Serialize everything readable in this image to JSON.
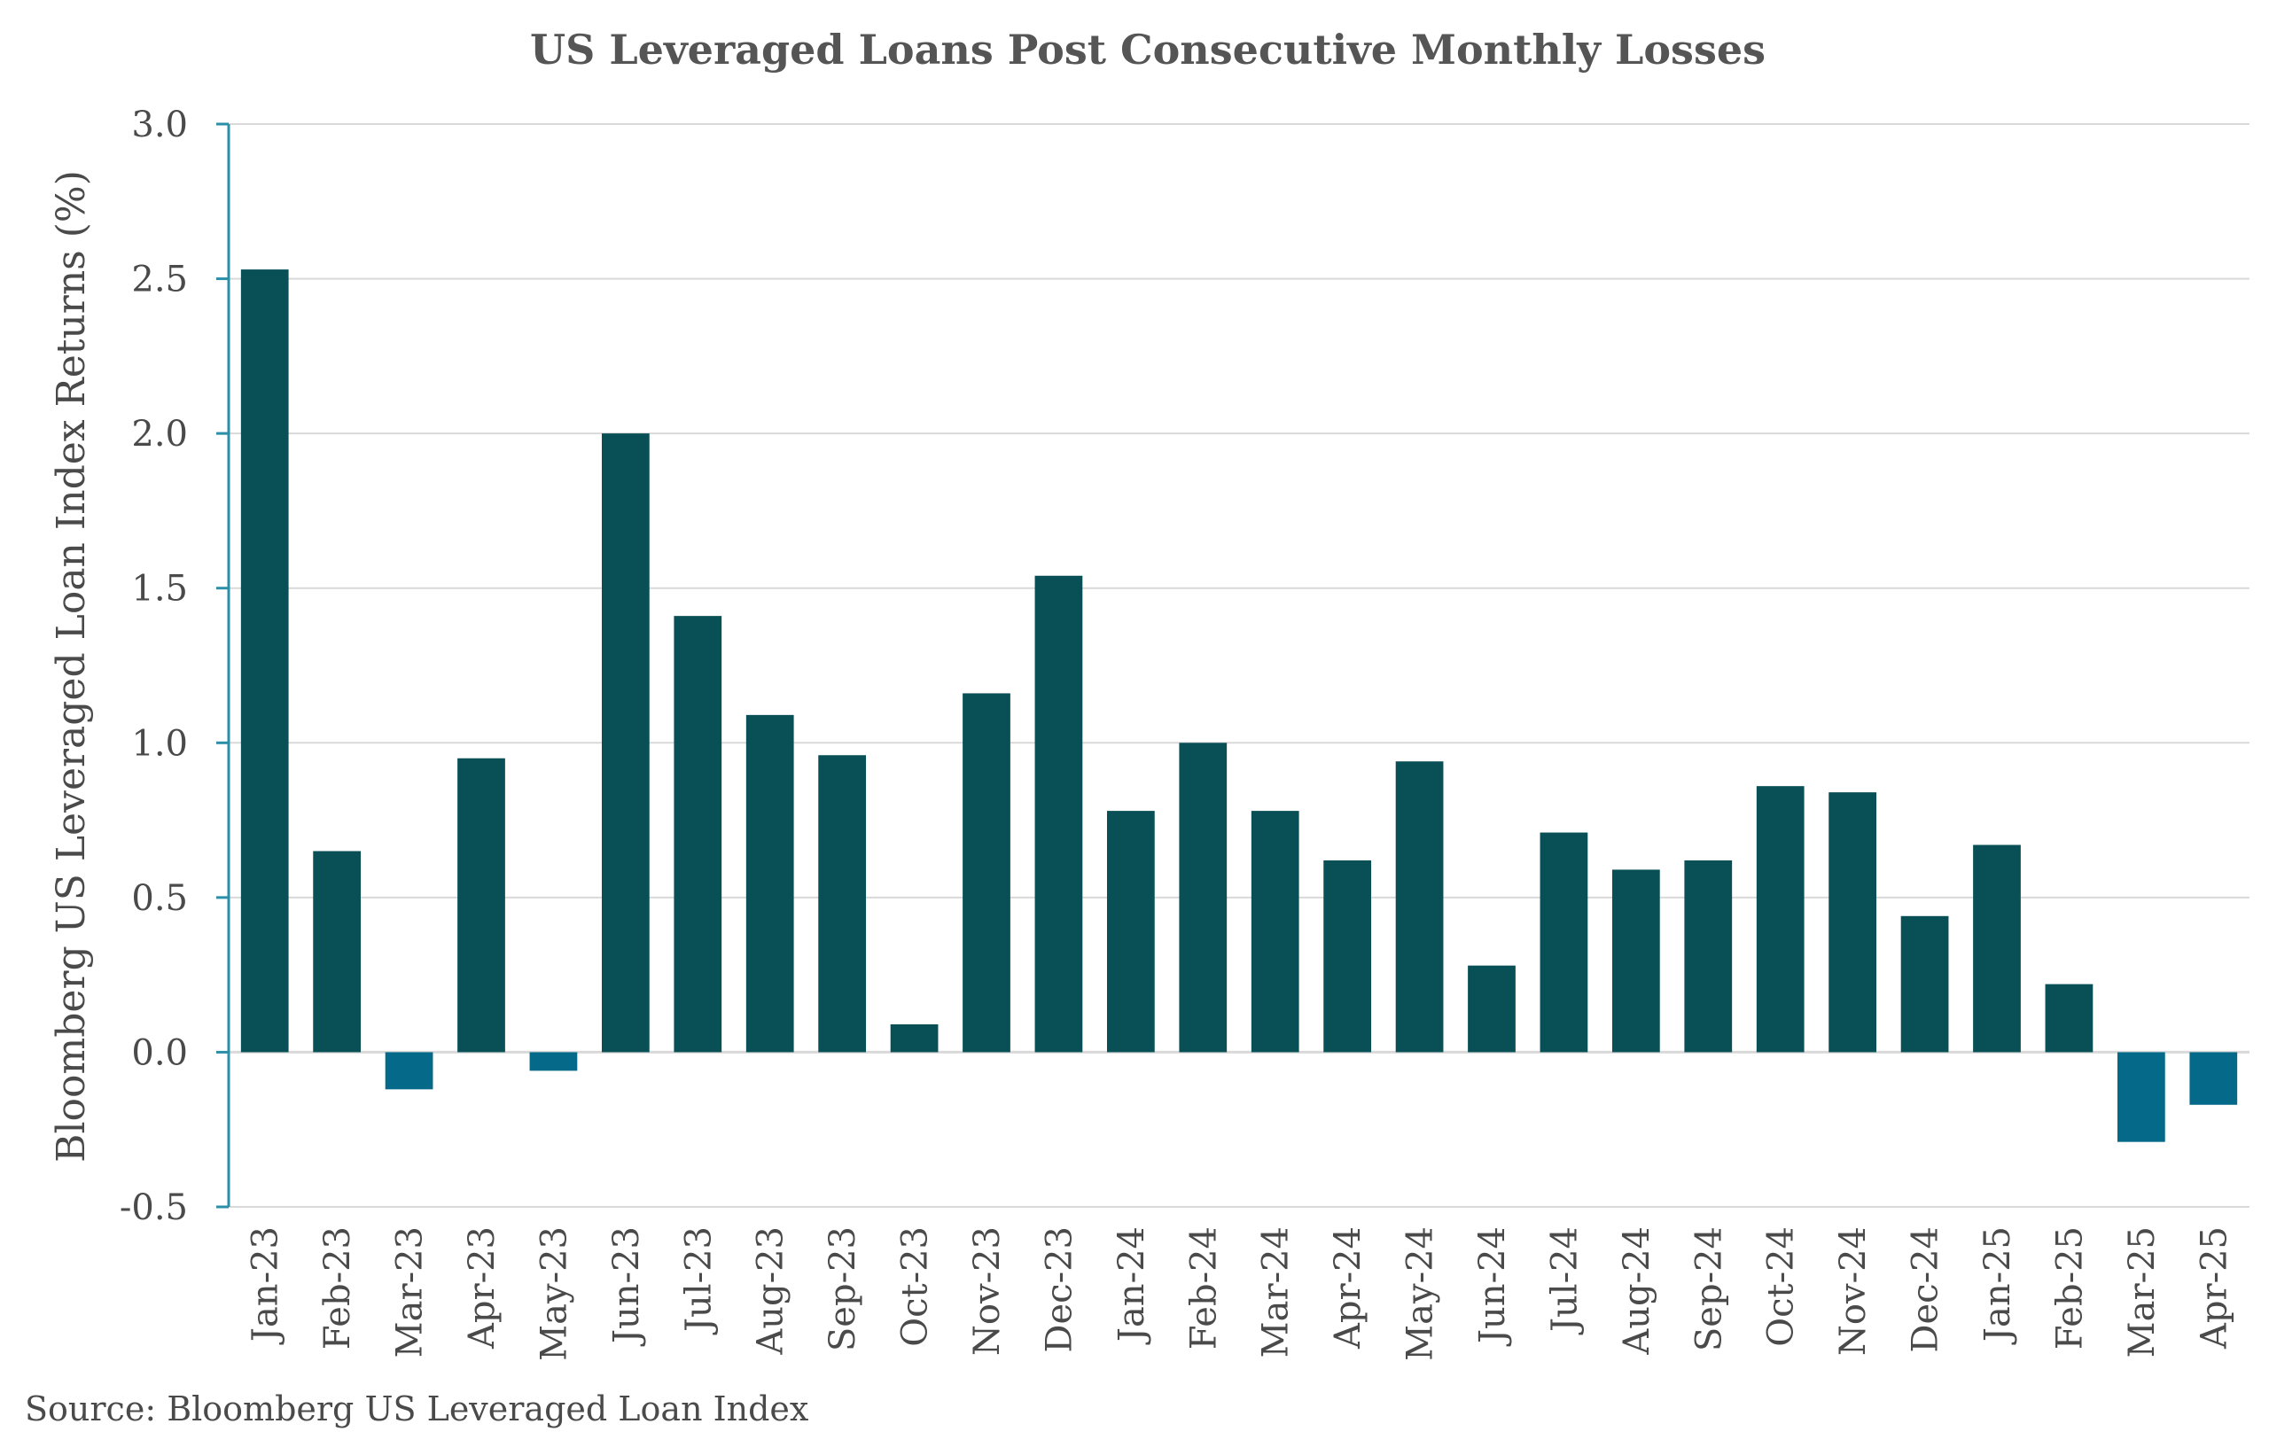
{
  "chart_data": {
    "type": "bar",
    "title": "US Leveraged Loans Post Consecutive Monthly Losses",
    "xlabel": "",
    "ylabel": "Bloomberg US Leveraged Loan Index Returns (%)",
    "ylim": [
      -0.5,
      3.0
    ],
    "yticks": [
      "-0.5",
      "0.0",
      "0.5",
      "1.0",
      "1.5",
      "2.0",
      "2.5",
      "3.0"
    ],
    "grid": true,
    "categories": [
      "Jan-23",
      "Feb-23",
      "Mar-23",
      "Apr-23",
      "May-23",
      "Jun-23",
      "Jul-23",
      "Aug-23",
      "Sep-23",
      "Oct-23",
      "Nov-23",
      "Dec-23",
      "Jan-24",
      "Feb-24",
      "Mar-24",
      "Apr-24",
      "May-24",
      "Jun-24",
      "Jul-24",
      "Aug-24",
      "Sep-24",
      "Oct-24",
      "Nov-24",
      "Dec-24",
      "Jan-25",
      "Feb-25",
      "Mar-25",
      "Apr-25"
    ],
    "values": [
      2.53,
      0.65,
      -0.12,
      0.95,
      -0.06,
      2.0,
      1.41,
      1.09,
      0.96,
      0.09,
      1.16,
      1.54,
      0.78,
      1.0,
      0.78,
      0.62,
      0.94,
      0.28,
      0.71,
      0.59,
      0.62,
      0.86,
      0.84,
      0.44,
      0.67,
      0.22,
      -0.29,
      -0.17
    ],
    "colors": {
      "positive": "#084f56",
      "negative": "#056a8a",
      "axis": "#2b8fa8",
      "grid": "#d9d9d9"
    }
  },
  "source": "Source: Bloomberg US Leveraged Loan Index"
}
